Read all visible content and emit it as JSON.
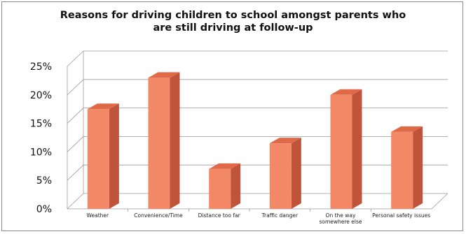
{
  "chart_data": {
    "type": "bar",
    "title": "Reasons for driving children to school amongst parents who\nare still driving at follow-up",
    "categories": [
      "Weather",
      "Convenience/Time",
      "Distance too far",
      "Traffic danger",
      "On the way somewhere else",
      "Personal safety issues"
    ],
    "category_lines": [
      [
        "Weather"
      ],
      [
        "Convenience/Time"
      ],
      [
        "Distance too far"
      ],
      [
        "Traffic danger"
      ],
      [
        "On the way",
        "somewhere else"
      ],
      [
        "Personal safety issues"
      ]
    ],
    "values": [
      17.5,
      23,
      7,
      11.5,
      20,
      13.5
    ],
    "y_ticks": [
      "0%",
      "5%",
      "10%",
      "15%",
      "20%",
      "25%"
    ],
    "ylim": [
      0,
      25
    ],
    "grid": true,
    "style": "3d-column",
    "colors": {
      "bar_front": "#f28865",
      "bar_side": "#c0543a",
      "bar_top": "#e06a48",
      "grid": "#9a9a9a"
    }
  }
}
